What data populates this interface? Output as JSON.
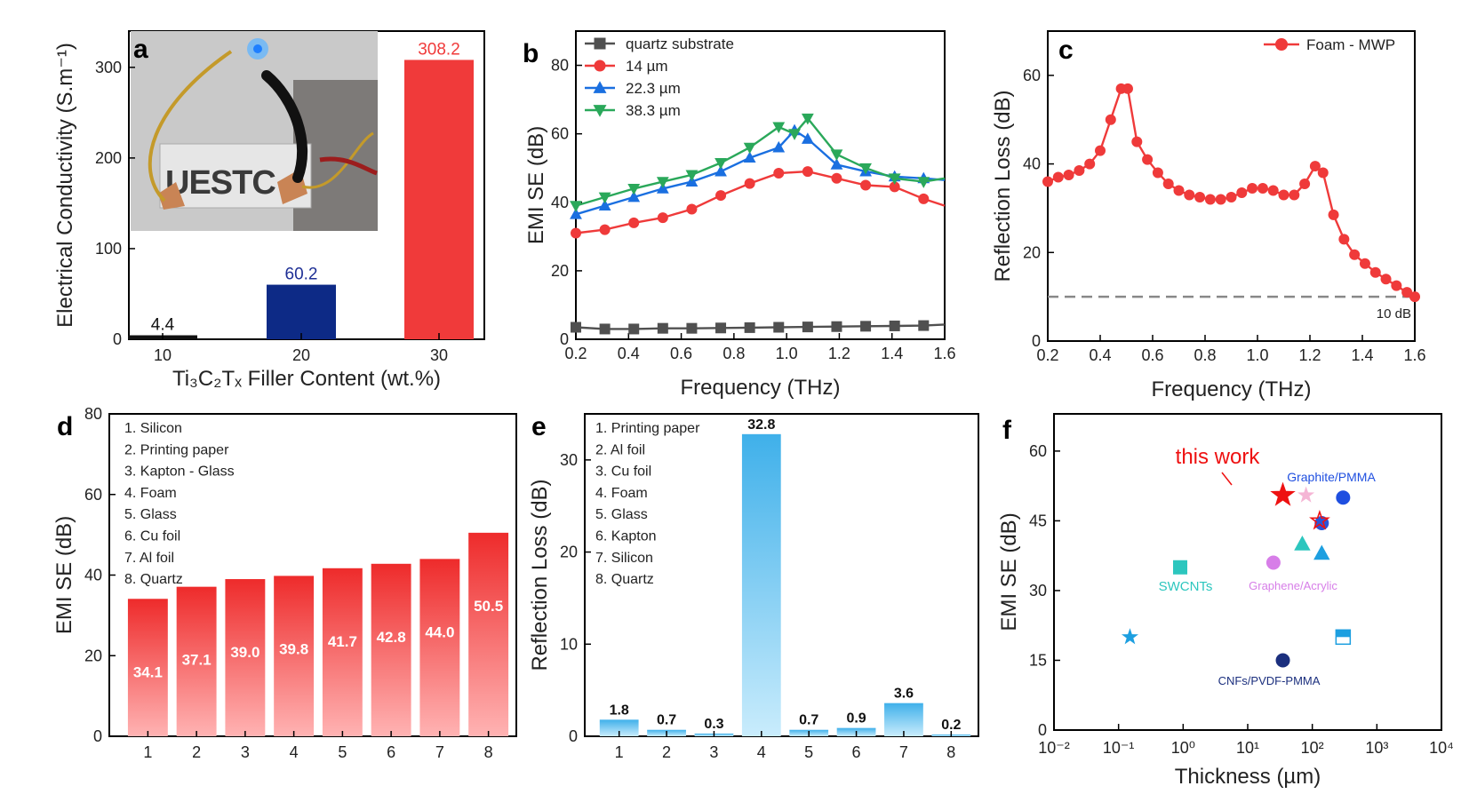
{
  "chart_data": [
    {
      "panel": "a",
      "type": "bar",
      "categories": [
        "10",
        "20",
        "30"
      ],
      "values": [
        4.4,
        60.2,
        308.2
      ],
      "value_labels": [
        "4.4",
        "60.2",
        "308.2"
      ],
      "bar_colors": [
        "#111111",
        "#0d2a86",
        "#f03a3a"
      ],
      "label_colors": [
        "#111111",
        "#1e2f95",
        "#f03a3a"
      ],
      "ylabel": "Electrical Conductivity (S.m⁻¹)",
      "xlabel": "Ti₃C₂Tₓ Filler Content (wt.%)",
      "ylim": [
        0,
        340
      ],
      "yticks": [
        0,
        100,
        200,
        300
      ],
      "inset": {
        "sign_text": "UESTC",
        "description_in_picture": "photo of LED circuit"
      }
    },
    {
      "panel": "b",
      "type": "line",
      "xlabel": "Frequency (THz)",
      "ylabel": "EMI SE (dB)",
      "xlim": [
        0.2,
        1.6
      ],
      "ylim": [
        0,
        90
      ],
      "xticks": [
        0.2,
        0.4,
        0.6,
        0.8,
        1.0,
        1.2,
        1.4,
        1.6
      ],
      "yticks": [
        0,
        20,
        40,
        60,
        80
      ],
      "legend_position": "top-left",
      "series": [
        {
          "name": "quartz substrate",
          "color": "#505050",
          "marker": "square",
          "x": [
            0.2,
            0.31,
            0.42,
            0.53,
            0.64,
            0.75,
            0.86,
            0.97,
            1.08,
            1.19,
            1.3,
            1.41,
            1.52,
            1.6
          ],
          "y": [
            3.5,
            3.0,
            3.0,
            3.2,
            3.2,
            3.3,
            3.4,
            3.5,
            3.6,
            3.7,
            3.8,
            3.9,
            4.0,
            4.3
          ]
        },
        {
          "name": "14 µm",
          "color": "#ef3a3a",
          "marker": "circle",
          "x": [
            0.2,
            0.31,
            0.42,
            0.53,
            0.64,
            0.75,
            0.86,
            0.97,
            1.08,
            1.19,
            1.3,
            1.41,
            1.52,
            1.6
          ],
          "y": [
            31,
            32,
            34,
            35.5,
            38,
            42,
            45.5,
            48.5,
            49,
            47,
            45,
            44.5,
            41,
            39
          ]
        },
        {
          "name": "22.3 µm",
          "color": "#1a6fe0",
          "marker": "triangle-up",
          "x": [
            0.2,
            0.31,
            0.42,
            0.53,
            0.64,
            0.75,
            0.86,
            0.97,
            1.03,
            1.08,
            1.19,
            1.3,
            1.41,
            1.52,
            1.6
          ],
          "y": [
            36.5,
            39,
            41.5,
            44,
            46,
            49,
            53,
            56,
            61,
            58.5,
            51,
            49,
            47.5,
            47,
            46.5
          ]
        },
        {
          "name": "38.3 µm",
          "color": "#2aa85a",
          "marker": "triangle-down",
          "x": [
            0.2,
            0.31,
            0.42,
            0.53,
            0.64,
            0.75,
            0.86,
            0.97,
            1.03,
            1.08,
            1.19,
            1.3,
            1.41,
            1.52,
            1.6
          ],
          "y": [
            39,
            41.5,
            44,
            46,
            48,
            51.5,
            56,
            62,
            60,
            64.5,
            54,
            50,
            47,
            46,
            47
          ]
        }
      ]
    },
    {
      "panel": "c",
      "type": "line",
      "xlabel": "Frequency (THz)",
      "ylabel": "Reflection Loss (dB)",
      "xlim": [
        0.2,
        1.6
      ],
      "ylim": [
        0,
        70
      ],
      "xticks": [
        0.2,
        0.4,
        0.6,
        0.8,
        1.0,
        1.2,
        1.4,
        1.6
      ],
      "yticks": [
        0,
        20,
        40,
        60
      ],
      "legend_position": "top-right",
      "reference_line": {
        "y": 10,
        "label": "10 dB",
        "color": "#888888"
      },
      "series": [
        {
          "name": "Foam - MWP",
          "color": "#ef3a3a",
          "marker": "circle",
          "x": [
            0.2,
            0.24,
            0.28,
            0.32,
            0.36,
            0.4,
            0.44,
            0.48,
            0.505,
            0.54,
            0.58,
            0.62,
            0.66,
            0.7,
            0.74,
            0.78,
            0.82,
            0.86,
            0.9,
            0.94,
            0.98,
            1.02,
            1.06,
            1.1,
            1.14,
            1.18,
            1.22,
            1.25,
            1.29,
            1.33,
            1.37,
            1.41,
            1.45,
            1.49,
            1.53,
            1.57,
            1.6
          ],
          "y": [
            36,
            37,
            37.5,
            38.5,
            40,
            43,
            50,
            57,
            57,
            45,
            41,
            38,
            35.5,
            34,
            33,
            32.5,
            32,
            32,
            32.5,
            33.5,
            34.5,
            34.5,
            34,
            33,
            33,
            35.5,
            39.5,
            38,
            28.5,
            23,
            19.5,
            17.5,
            15.5,
            14,
            12.5,
            11,
            10
          ]
        }
      ]
    },
    {
      "panel": "d",
      "type": "bar",
      "categories": [
        "1",
        "2",
        "3",
        "4",
        "5",
        "6",
        "7",
        "8"
      ],
      "values": [
        34.1,
        37.1,
        39.0,
        39.8,
        41.7,
        42.8,
        44.0,
        50.5
      ],
      "value_labels": [
        "34.1",
        "37.1",
        "39.0",
        "39.8",
        "41.7",
        "42.8",
        "44.0",
        "50.5"
      ],
      "ylabel": "EMI SE (dB)",
      "ylim": [
        0,
        80
      ],
      "yticks": [
        0,
        20,
        40,
        60,
        80
      ],
      "color_top": "#ee2b2b",
      "color_bottom": "#ffb3b3",
      "legend_list": [
        "1. Silicon",
        "2. Printing paper",
        "3. Kapton - Glass",
        "4. Foam",
        "5. Glass",
        "6. Cu foil",
        "7. Al foil",
        "8. Quartz"
      ]
    },
    {
      "panel": "e",
      "type": "bar",
      "categories": [
        "1",
        "2",
        "3",
        "4",
        "5",
        "6",
        "7",
        "8"
      ],
      "values": [
        1.8,
        0.7,
        0.3,
        32.8,
        0.7,
        0.9,
        3.6,
        0.2
      ],
      "value_labels": [
        "1.8",
        "0.7",
        "0.3",
        "32.8",
        "0.7",
        "0.9",
        "3.6",
        "0.2"
      ],
      "ylabel": "Reflection Loss (dB)",
      "ylim": [
        0,
        35
      ],
      "yticks": [
        0,
        10,
        20,
        30
      ],
      "color_top": "#3fb0ea",
      "color_bottom": "#c9ecfc",
      "legend_list": [
        "1. Printing paper",
        "2. Al foil",
        "3. Cu foil",
        "4. Foam",
        "5. Glass",
        "6. Kapton",
        "7. Silicon",
        "8. Quartz"
      ]
    },
    {
      "panel": "f",
      "type": "scatter",
      "xlabel": "Thickness (µm)",
      "ylabel": "EMI SE (dB)",
      "x_scale": "log",
      "xlim": [
        0.01,
        10000
      ],
      "ylim": [
        0,
        68
      ],
      "xtick_labels": [
        "10⁻²",
        "10⁻¹",
        "10⁰",
        "10¹",
        "10²",
        "10³",
        "10⁴"
      ],
      "yticks": [
        0,
        15,
        30,
        45,
        60
      ],
      "points": [
        {
          "x": 35,
          "y": 50.5,
          "marker": "star",
          "color": "#ee1111",
          "size": "large"
        },
        {
          "x": 80,
          "y": 50.5,
          "marker": "star",
          "color": "#f5b5d5"
        },
        {
          "x": 300,
          "y": 50,
          "marker": "circle",
          "color": "#1f4fe0"
        },
        {
          "x": 140,
          "y": 44.5,
          "marker": "circle",
          "color": "#2a55d8"
        },
        {
          "x": 130,
          "y": 45,
          "marker": "star-outline",
          "color": "#ee1111"
        },
        {
          "x": 70,
          "y": 40,
          "marker": "triangle",
          "color": "#2cc6be"
        },
        {
          "x": 140,
          "y": 38,
          "marker": "triangle",
          "color": "#1d9fe0"
        },
        {
          "x": 25,
          "y": 36,
          "marker": "circle",
          "color": "#d77ee8"
        },
        {
          "x": 0.9,
          "y": 35,
          "marker": "square",
          "color": "#2cc6be"
        },
        {
          "x": 0.15,
          "y": 20,
          "marker": "star",
          "color": "#1d9fe0"
        },
        {
          "x": 300,
          "y": 20,
          "marker": "square-half",
          "color": "#1d9fe0"
        },
        {
          "x": 35,
          "y": 15,
          "marker": "circle",
          "color": "#1b2f7e"
        }
      ],
      "annotations": [
        {
          "text": "this work",
          "color": "#ee1111"
        },
        {
          "text": "Graphite/PMMA",
          "color": "#1f4fe0"
        },
        {
          "text": "SWCNTs",
          "color": "#2cc6be"
        },
        {
          "text": "Graphene/Acrylic",
          "color": "#d77ee8"
        },
        {
          "text": "CNFs/PVDF-PMMA",
          "color": "#1b2f7e"
        }
      ]
    }
  ],
  "panel_letters": [
    "a",
    "b",
    "c",
    "d",
    "e",
    "f"
  ]
}
